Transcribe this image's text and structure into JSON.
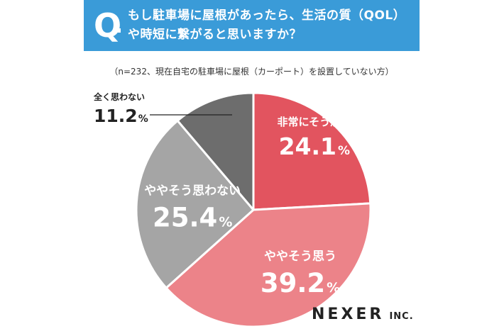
{
  "header": {
    "q_letter": "Q",
    "question_line1": "もし駐車場に屋根があったら、生活の質（QOL）",
    "question_line2": "や時短に繋がると思いますか？"
  },
  "note": "（n=232、現在自宅の駐車場に屋根（カーポート）を設置していない方）",
  "brand": {
    "name": "NEXER",
    "suffix": "INC."
  },
  "colors": {
    "header_bg": "#3a9bd8",
    "strongly_agree": "#e2545f",
    "somewhat_agree": "#ec8389",
    "somewhat_disagree": "#a5a5a5",
    "not_at_all": "#6d6d6d"
  },
  "chart_data": {
    "type": "pie",
    "title": "もし駐車場に屋根があったら、生活の質（QOL）や時短に繋がると思いますか？",
    "unit": "%",
    "slices": [
      {
        "label": "非常にそう思う",
        "value": 24.1,
        "color": "#e2545f",
        "label_color": "#ffffff"
      },
      {
        "label": "ややそう思う",
        "value": 39.2,
        "color": "#ec8389",
        "label_color": "#ffffff"
      },
      {
        "label": "ややそう思わない",
        "value": 25.4,
        "color": "#a5a5a5",
        "label_color": "#ffffff"
      },
      {
        "label": "全く思わない",
        "value": 11.2,
        "color": "#6d6d6d",
        "label_color": "#222222"
      }
    ]
  }
}
